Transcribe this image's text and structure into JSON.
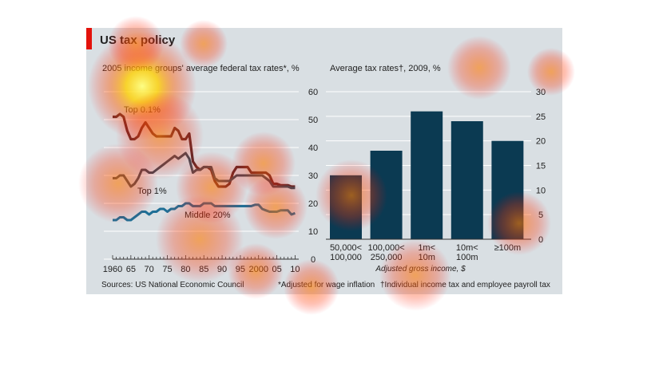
{
  "title": "US tax policy",
  "footer": {
    "source": "Sources: US National Economic Council",
    "note1": "*Adjusted for wage inflation",
    "note2": "†Individual income tax and employee payroll tax"
  },
  "colors": {
    "background": "#d9dfe3",
    "accent_red": "#e3120b",
    "top01": "#5a2a2a",
    "top1": "#3d4a55",
    "middle20": "#1e6f96",
    "bars": "#0b3a52"
  },
  "chart_data": [
    {
      "type": "line",
      "title": "2005 income groups' average federal tax rates*, %",
      "ylim": [
        0,
        60
      ],
      "yticks": [
        "0",
        "10",
        "20",
        "30",
        "40",
        "50",
        "60"
      ],
      "xlim": [
        1960,
        2011
      ],
      "xtick_labels": [
        "1960",
        "65",
        "70",
        "75",
        "80",
        "85",
        "90",
        "95",
        "2000",
        "05",
        "10"
      ],
      "grid": true,
      "series": [
        {
          "name": "Top 0.1%",
          "x": [
            1960,
            1961,
            1962,
            1963,
            1964,
            1965,
            1966,
            1967,
            1968,
            1969,
            1970,
            1971,
            1972,
            1973,
            1974,
            1975,
            1976,
            1977,
            1978,
            1979,
            1980,
            1981,
            1982,
            1983,
            1984,
            1985,
            1986,
            1987,
            1988,
            1989,
            1990,
            1991,
            1992,
            1993,
            1994,
            1995,
            1996,
            1997,
            1998,
            1999,
            2000,
            2001,
            2002,
            2003,
            2004,
            2005,
            2006,
            2007,
            2008,
            2009,
            2010
          ],
          "values": [
            51,
            51,
            52,
            51,
            46,
            43,
            43,
            44,
            47,
            49,
            47,
            45,
            44,
            44,
            44,
            44,
            44,
            47,
            46,
            43,
            43,
            45,
            35,
            33,
            32,
            33,
            33,
            32,
            28,
            26,
            26,
            26,
            27,
            31,
            33,
            33,
            33,
            33,
            31,
            31,
            31,
            31,
            31,
            30,
            27,
            27,
            26.5,
            26.5,
            26.5,
            26,
            26
          ]
        },
        {
          "name": "Top 1%",
          "x": [
            1960,
            1961,
            1962,
            1963,
            1964,
            1965,
            1966,
            1967,
            1968,
            1969,
            1970,
            1971,
            1972,
            1973,
            1974,
            1975,
            1976,
            1977,
            1978,
            1979,
            1980,
            1981,
            1982,
            1983,
            1984,
            1985,
            1986,
            1987,
            1988,
            1989,
            1990,
            1991,
            1992,
            1993,
            1994,
            1995,
            1996,
            1997,
            1998,
            1999,
            2000,
            2001,
            2002,
            2003,
            2004,
            2005,
            2006,
            2007,
            2008,
            2009,
            2010
          ],
          "values": [
            29,
            29,
            30,
            30,
            28,
            26,
            27,
            29,
            32,
            32,
            31,
            31,
            32,
            33,
            34,
            35,
            36,
            37,
            36,
            37,
            38,
            36,
            31,
            32,
            32,
            33,
            33,
            33,
            29,
            28,
            28,
            28,
            28,
            29,
            30,
            30,
            30,
            30,
            30,
            30,
            30,
            30,
            29,
            28,
            26,
            26,
            26,
            26,
            26,
            25.5,
            25.5
          ]
        },
        {
          "name": "Middle 20%",
          "x": [
            1960,
            1961,
            1962,
            1963,
            1964,
            1965,
            1966,
            1967,
            1968,
            1969,
            1970,
            1971,
            1972,
            1973,
            1974,
            1975,
            1976,
            1977,
            1978,
            1979,
            1980,
            1981,
            1982,
            1983,
            1984,
            1985,
            1986,
            1987,
            1988,
            1989,
            1990,
            1991,
            1992,
            1993,
            1994,
            1995,
            1996,
            1997,
            1998,
            1999,
            2000,
            2001,
            2002,
            2003,
            2004,
            2005,
            2006,
            2007,
            2008,
            2009,
            2010
          ],
          "values": [
            14,
            14,
            15,
            15,
            14,
            14,
            15,
            16,
            17,
            17,
            16,
            17,
            17,
            18,
            18,
            17,
            18,
            18,
            19,
            19,
            20,
            20,
            19,
            19,
            19,
            20,
            20,
            20,
            19,
            19,
            19,
            19,
            19,
            19,
            19,
            19,
            19,
            19,
            19,
            19.5,
            19.5,
            18,
            17.5,
            17,
            17,
            17,
            17.5,
            17.5,
            17.5,
            16,
            16.5
          ]
        }
      ]
    },
    {
      "type": "bar",
      "title": "Average tax rates†, 2009, %",
      "categories": [
        "50,000<\n100,000",
        "100,000<\n250,000",
        "1m<\n10m",
        "10m<\n100m",
        "≥100m"
      ],
      "values": [
        13,
        18,
        26,
        24,
        20
      ],
      "ylim": [
        0,
        30
      ],
      "yticks": [
        "0",
        "5",
        "10",
        "15",
        "20",
        "25",
        "30"
      ],
      "xlabel": "Adjusted gross income, $",
      "grid": true
    }
  ]
}
